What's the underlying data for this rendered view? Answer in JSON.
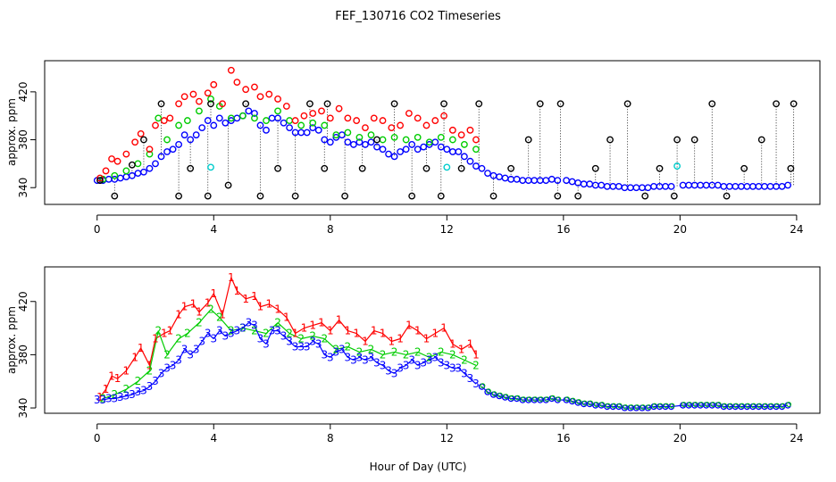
{
  "chart_data": {
    "title": "FEF_130716  CO2 Timeseries",
    "xlabel": "Hour of Day (UTC)",
    "xlim": [
      -1.8,
      24.8
    ],
    "xticks": [
      0,
      4,
      8,
      12,
      16,
      20,
      24
    ],
    "colors": {
      "black": "#000000",
      "red": "#ff0000",
      "green": "#00cc00",
      "blue": "#0000ff",
      "cyan": "#00cccc",
      "gray": "#777777"
    },
    "panels": [
      {
        "type": "scatter",
        "ylabel": "approx. ppm",
        "ylim": [
          326,
          446
        ],
        "yticks": [
          340,
          380,
          420
        ],
        "markers": "circles",
        "series": [
          {
            "name": "black",
            "x": [
              0.1,
              0.6,
              1.2,
              1.6,
              2.2,
              2.8,
              3.2,
              3.8,
              3.9,
              4.5,
              5.1,
              5.6,
              6.2,
              6.8,
              7.3,
              7.8,
              7.9,
              8.5,
              9.1,
              9.6,
              10.2,
              10.8,
              11.3,
              11.8,
              11.9,
              12.5,
              13.1,
              13.6,
              14.2,
              14.8,
              15.2,
              15.8,
              15.9,
              16.5,
              17.1,
              17.6,
              18.2,
              18.8,
              19.3,
              19.8,
              19.9,
              20.5,
              21.1,
              21.6,
              22.2,
              22.8,
              23.3,
              23.8,
              23.9
            ],
            "y": [
              346,
              333,
              359,
              380,
              410,
              333,
              356,
              333,
              410,
              342,
              410,
              333,
              356,
              333,
              410,
              356,
              410,
              333,
              356,
              380,
              410,
              333,
              356,
              333,
              410,
              356,
              410,
              333,
              356,
              380,
              410,
              333,
              410,
              333,
              356,
              380,
              410,
              333,
              356,
              333,
              380,
              380,
              410,
              333,
              356,
              380,
              410,
              356,
              410
            ]
          },
          {
            "name": "red",
            "x": [
              0.1,
              0.3,
              0.5,
              0.7,
              1.0,
              1.3,
              1.5,
              1.8,
              2.0,
              2.3,
              2.5,
              2.8,
              3.0,
              3.3,
              3.5,
              3.8,
              4.0,
              4.3,
              4.6,
              4.8,
              5.1,
              5.4,
              5.6,
              5.9,
              6.2,
              6.5,
              6.8,
              7.1,
              7.4,
              7.7,
              8.0,
              8.3,
              8.6,
              8.9,
              9.2,
              9.5,
              9.8,
              10.1,
              10.4,
              10.7,
              11.0,
              11.3,
              11.6,
              11.9,
              12.2,
              12.5,
              12.8,
              13.0
            ],
            "y": [
              348,
              354,
              364,
              362,
              368,
              378,
              385,
              372,
              392,
              396,
              398,
              410,
              416,
              418,
              412,
              419,
              426,
              410,
              438,
              428,
              422,
              424,
              416,
              418,
              414,
              408,
              396,
              400,
              402,
              404,
              398,
              406,
              398,
              396,
              390,
              398,
              396,
              390,
              392,
              402,
              398,
              392,
              396,
              400,
              388,
              384,
              388,
              380
            ]
          },
          {
            "name": "green",
            "x": [
              0.2,
              0.6,
              1.0,
              1.4,
              1.8,
              2.1,
              2.4,
              2.8,
              3.1,
              3.5,
              3.9,
              4.2,
              4.6,
              5.0,
              5.4,
              5.8,
              6.2,
              6.6,
              7.0,
              7.4,
              7.8,
              8.2,
              8.6,
              9.0,
              9.4,
              9.8,
              10.2,
              10.6,
              11.0,
              11.4,
              11.8,
              12.2,
              12.6,
              13.0
            ],
            "y": [
              347,
              350,
              354,
              360,
              368,
              398,
              380,
              392,
              396,
              404,
              414,
              408,
              398,
              400,
              398,
              396,
              404,
              396,
              392,
              394,
              392,
              384,
              386,
              382,
              384,
              380,
              382,
              380,
              382,
              378,
              382,
              380,
              376,
              372
            ]
          },
          {
            "name": "blue",
            "x": [
              0.0,
              0.2,
              0.4,
              0.6,
              0.8,
              1.0,
              1.2,
              1.4,
              1.6,
              1.8,
              2.0,
              2.2,
              2.4,
              2.6,
              2.8,
              3.0,
              3.2,
              3.4,
              3.6,
              3.8,
              4.0,
              4.2,
              4.4,
              4.6,
              4.8,
              5.0,
              5.2,
              5.4,
              5.6,
              5.8,
              6.0,
              6.2,
              6.4,
              6.6,
              6.8,
              7.0,
              7.2,
              7.4,
              7.6,
              7.8,
              8.0,
              8.2,
              8.4,
              8.6,
              8.8,
              9.0,
              9.2,
              9.4,
              9.6,
              9.8,
              10.0,
              10.2,
              10.4,
              10.6,
              10.8,
              11.0,
              11.2,
              11.4,
              11.6,
              11.8,
              12.0,
              12.2,
              12.4,
              12.6,
              12.8,
              13.0,
              13.2,
              13.4,
              13.6,
              13.8,
              14.0,
              14.2,
              14.4,
              14.6,
              14.8,
              15.0,
              15.2,
              15.4,
              15.6,
              15.8,
              16.1,
              16.3,
              16.5,
              16.7,
              16.9,
              17.1,
              17.3,
              17.5,
              17.7,
              17.9,
              18.1,
              18.3,
              18.5,
              18.7,
              18.9,
              19.1,
              19.3,
              19.5,
              19.7,
              20.1,
              20.3,
              20.5,
              20.7,
              20.9,
              21.1,
              21.3,
              21.5,
              21.7,
              21.9,
              22.1,
              22.3,
              22.5,
              22.7,
              22.9,
              23.1,
              23.3,
              23.5,
              23.7
            ],
            "y": [
              346,
              346,
              347,
              347,
              348,
              349,
              350,
              352,
              353,
              356,
              360,
              366,
              370,
              372,
              376,
              384,
              380,
              384,
              390,
              396,
              392,
              398,
              394,
              396,
              398,
              400,
              404,
              402,
              392,
              388,
              398,
              398,
              394,
              390,
              386,
              386,
              386,
              390,
              388,
              380,
              378,
              382,
              384,
              378,
              376,
              378,
              376,
              378,
              374,
              372,
              368,
              366,
              370,
              372,
              376,
              372,
              374,
              376,
              378,
              374,
              372,
              370,
              370,
              366,
              362,
              358,
              356,
              352,
              350,
              349,
              348,
              347,
              347,
              346,
              346,
              346,
              346,
              346,
              347,
              346,
              346,
              345,
              344,
              343,
              343,
              342,
              342,
              341,
              341,
              341,
              340,
              340,
              340,
              340,
              340,
              341,
              341,
              341,
              341,
              342,
              342,
              342,
              342,
              342,
              342,
              342,
              341,
              341,
              341,
              341,
              341,
              341,
              341,
              341,
              341,
              341,
              341,
              342
            ]
          },
          {
            "name": "cyan",
            "x": [
              3.9,
              12.0,
              19.9
            ],
            "y": [
              357,
              357,
              358
            ]
          }
        ]
      },
      {
        "type": "line",
        "ylabel": "approx. ppm",
        "ylim": [
          336,
          446
        ],
        "yticks": [
          340,
          380,
          420
        ],
        "markers": "numbers",
        "series": [
          {
            "name": "1",
            "label": "1",
            "x": [
              0.1,
              0.3,
              0.5,
              0.7,
              1.0,
              1.3,
              1.5,
              1.8,
              2.0,
              2.3,
              2.5,
              2.8,
              3.0,
              3.3,
              3.5,
              3.8,
              4.0,
              4.3,
              4.6,
              4.8,
              5.1,
              5.4,
              5.6,
              5.9,
              6.2,
              6.5,
              6.8,
              7.1,
              7.4,
              7.7,
              8.0,
              8.3,
              8.6,
              8.9,
              9.2,
              9.5,
              9.8,
              10.1,
              10.4,
              10.7,
              11.0,
              11.3,
              11.6,
              11.9,
              12.2,
              12.5,
              12.8,
              13.0
            ],
            "y": [
              348,
              354,
              364,
              362,
              368,
              378,
              385,
              372,
              392,
              396,
              398,
              410,
              416,
              418,
              412,
              419,
              426,
              410,
              438,
              428,
              422,
              424,
              416,
              418,
              414,
              408,
              396,
              400,
              402,
              404,
              398,
              406,
              398,
              396,
              390,
              398,
              396,
              390,
              392,
              402,
              398,
              392,
              396,
              400,
              388,
              384,
              388,
              380
            ]
          },
          {
            "name": "2",
            "label": "2",
            "x": [
              0.2,
              0.6,
              1.0,
              1.4,
              1.8,
              2.1,
              2.4,
              2.8,
              3.1,
              3.5,
              3.9,
              4.2,
              4.6,
              5.0,
              5.4,
              5.8,
              6.2,
              6.6,
              7.0,
              7.4,
              7.8,
              8.2,
              8.6,
              9.0,
              9.4,
              9.8,
              10.2,
              10.6,
              11.0,
              11.4,
              11.8,
              12.2,
              12.6,
              13.0
            ],
            "y": [
              347,
              350,
              354,
              360,
              368,
              398,
              380,
              392,
              396,
              404,
              414,
              408,
              398,
              400,
              398,
              396,
              404,
              396,
              392,
              394,
              392,
              384,
              386,
              382,
              384,
              380,
              382,
              380,
              382,
              378,
              382,
              380,
              376,
              372
            ]
          },
          {
            "name": "3",
            "label": "3",
            "x": [
              0.0,
              0.2,
              0.4,
              0.6,
              0.8,
              1.0,
              1.2,
              1.4,
              1.6,
              1.8,
              2.0,
              2.2,
              2.4,
              2.6,
              2.8,
              3.0,
              3.2,
              3.4,
              3.6,
              3.8,
              4.0,
              4.2,
              4.4,
              4.6,
              4.8,
              5.0,
              5.2,
              5.4,
              5.6,
              5.8,
              6.0,
              6.2,
              6.4,
              6.6,
              6.8,
              7.0,
              7.2,
              7.4,
              7.6,
              7.8,
              8.0,
              8.2,
              8.4,
              8.6,
              8.8,
              9.0,
              9.2,
              9.4,
              9.6,
              9.8,
              10.0,
              10.2,
              10.4,
              10.6,
              10.8,
              11.0,
              11.2,
              11.4,
              11.6,
              11.8,
              12.0,
              12.2,
              12.4,
              12.6,
              12.8,
              13.0
            ],
            "y": [
              346,
              346,
              347,
              347,
              348,
              349,
              350,
              352,
              353,
              356,
              360,
              366,
              370,
              372,
              376,
              384,
              380,
              384,
              390,
              396,
              392,
              398,
              394,
              396,
              398,
              400,
              404,
              402,
              392,
              388,
              398,
              398,
              394,
              390,
              386,
              386,
              386,
              390,
              388,
              380,
              378,
              382,
              384,
              378,
              376,
              378,
              376,
              378,
              374,
              372,
              368,
              366,
              370,
              372,
              376,
              372,
              374,
              376,
              378,
              374,
              372,
              370,
              370,
              366,
              362,
              358
            ]
          },
          {
            "name": "overlap",
            "label": "o",
            "x": [
              13.2,
              13.4,
              13.6,
              13.8,
              14.0,
              14.2,
              14.4,
              14.6,
              14.8,
              15.0,
              15.2,
              15.4,
              15.6,
              15.8,
              16.1,
              16.3,
              16.5,
              16.7,
              16.9,
              17.1,
              17.3,
              17.5,
              17.7,
              17.9,
              18.1,
              18.3,
              18.5,
              18.7,
              18.9,
              19.1,
              19.3,
              19.5,
              19.7,
              20.1,
              20.3,
              20.5,
              20.7,
              20.9,
              21.1,
              21.3,
              21.5,
              21.7,
              21.9,
              22.1,
              22.3,
              22.5,
              22.7,
              22.9,
              23.1,
              23.3,
              23.5,
              23.7
            ],
            "y": [
              356,
              352,
              350,
              349,
              348,
              347,
              347,
              346,
              346,
              346,
              346,
              346,
              347,
              346,
              346,
              345,
              344,
              343,
              343,
              342,
              342,
              341,
              341,
              341,
              340,
              340,
              340,
              340,
              340,
              341,
              341,
              341,
              341,
              342,
              342,
              342,
              342,
              342,
              342,
              342,
              341,
              341,
              341,
              341,
              341,
              341,
              341,
              341,
              341,
              341,
              341,
              342
            ]
          }
        ]
      }
    ]
  }
}
